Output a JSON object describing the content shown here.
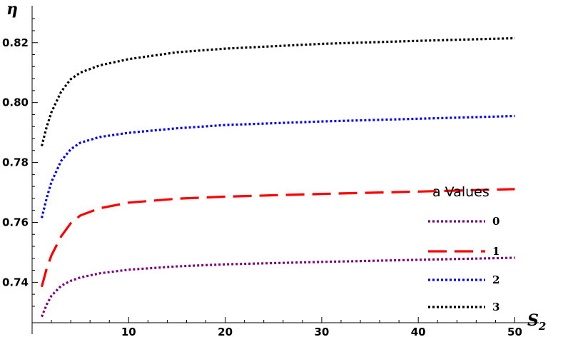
{
  "chart_data": {
    "type": "line",
    "title": "",
    "xlabel": "S",
    "xlabel_sub": "2",
    "ylabel": "η",
    "xlim": [
      0,
      51
    ],
    "ylim": [
      0.7265,
      0.829
    ],
    "x_ticks": [
      10,
      20,
      30,
      40,
      50
    ],
    "x_tick_labels": [
      "10",
      "20",
      "30",
      "40",
      "50"
    ],
    "y_ticks": [
      0.74,
      0.76,
      0.78,
      0.8,
      0.82
    ],
    "y_tick_labels": [
      "0.74",
      "0.76",
      "0.78",
      "0.80",
      "0.82"
    ],
    "grid": false,
    "legend": {
      "title": "a Values",
      "placement": "bottom-right"
    },
    "x": [
      1,
      1.5,
      2,
      3,
      4,
      5,
      7,
      10,
      15,
      20,
      30,
      40,
      50
    ],
    "series": [
      {
        "name": "0",
        "color": "#800080",
        "dash": "dotted",
        "values": [
          0.7285,
          0.7325,
          0.7355,
          0.7388,
          0.7405,
          0.7416,
          0.743,
          0.7442,
          0.7453,
          0.746,
          0.7468,
          0.7475,
          0.7482
        ]
      },
      {
        "name": "1",
        "color": "#ff0000",
        "dash": "long-dashed",
        "values": [
          0.7385,
          0.7445,
          0.749,
          0.7553,
          0.7597,
          0.7623,
          0.7647,
          0.7666,
          0.7679,
          0.7686,
          0.7695,
          0.7703,
          0.7711
        ]
      },
      {
        "name": "2",
        "color": "#0000ff",
        "dash": "dotted",
        "values": [
          0.7615,
          0.768,
          0.7735,
          0.7805,
          0.7844,
          0.7866,
          0.7885,
          0.7899,
          0.7914,
          0.7925,
          0.7937,
          0.7946,
          0.7955
        ]
      },
      {
        "name": "3",
        "color": "#000000",
        "dash": "dotted",
        "values": [
          0.7855,
          0.7918,
          0.7968,
          0.8036,
          0.8078,
          0.81,
          0.8124,
          0.8145,
          0.8168,
          0.818,
          0.8196,
          0.8206,
          0.8215
        ]
      }
    ]
  }
}
